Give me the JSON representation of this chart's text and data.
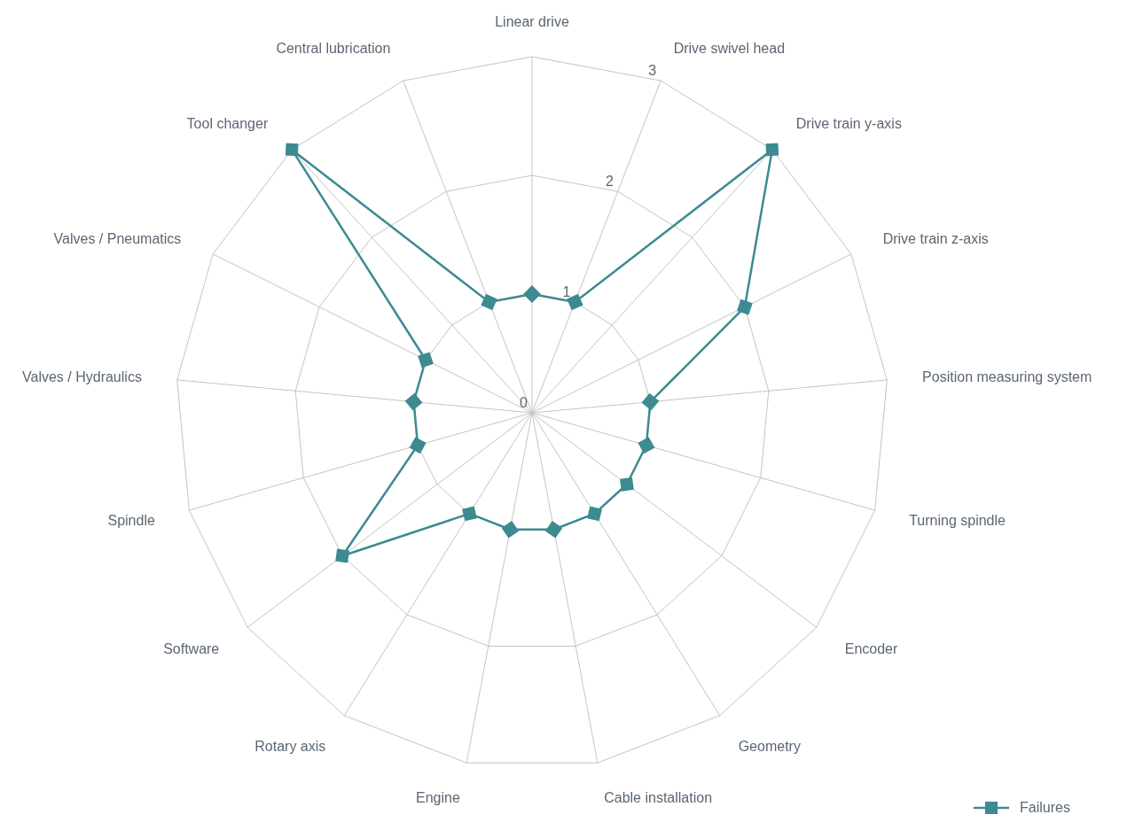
{
  "chart_data": {
    "type": "radar",
    "categories": [
      "Linear drive",
      "Drive swivel head",
      "Drive train y-axis",
      "Drive train z-axis",
      "Position measuring system",
      "Turning spindle",
      "Encoder",
      "Geometry",
      "Cable installation",
      "Engine",
      "Rotary axis",
      "Software",
      "Spindle",
      "Valves / Hydraulics",
      "Valves / Pneumatics",
      "Tool changer",
      "Central lubrication"
    ],
    "series": [
      {
        "name": "Failures",
        "color": "#3d8a91",
        "values": [
          1,
          1,
          3,
          2,
          1,
          1,
          1,
          1,
          1,
          1,
          1,
          2,
          1,
          1,
          1,
          3,
          1
        ]
      }
    ],
    "ylim": [
      0,
      3
    ],
    "yticks": [
      0,
      1,
      2,
      3
    ],
    "grid": true,
    "legend": "bottom right",
    "marker": "square",
    "line_style": "solid"
  }
}
